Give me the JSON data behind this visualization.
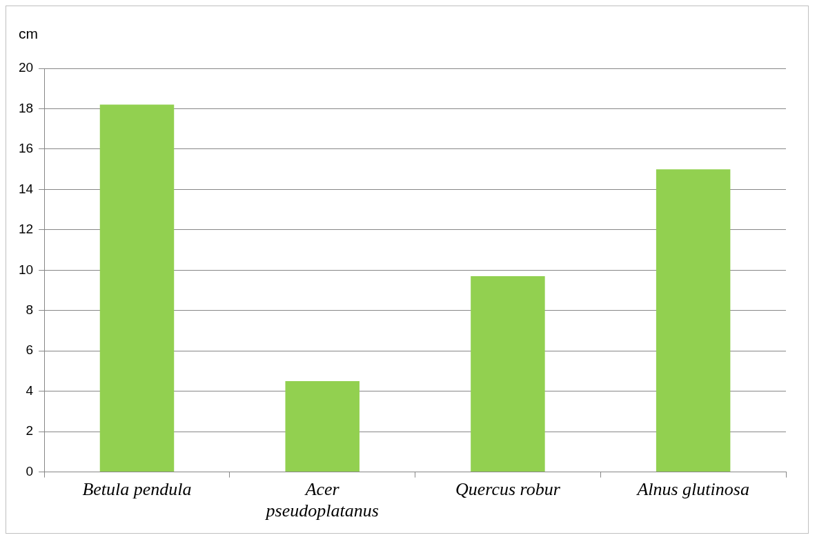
{
  "chart_data": {
    "type": "bar",
    "ylabel": "cm",
    "categories": [
      "Betula pendula",
      "Acer pseudoplatanus",
      "Quercus robur",
      "Alnus glutinosa"
    ],
    "values": [
      18.2,
      4.5,
      9.7,
      15
    ],
    "color": "#92d050",
    "ylim": [
      0,
      20
    ],
    "yticks": [
      0,
      2,
      4,
      6,
      8,
      10,
      12,
      14,
      16,
      18,
      20
    ],
    "grid": "y",
    "legend": false
  }
}
